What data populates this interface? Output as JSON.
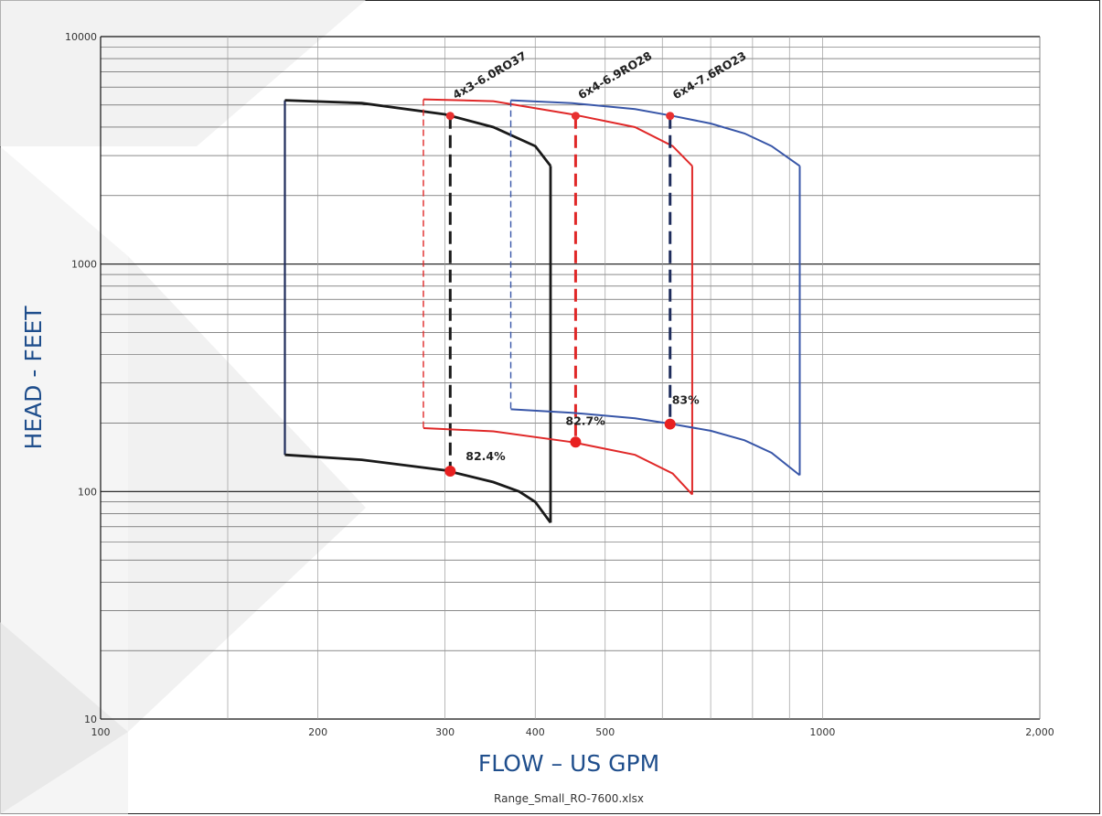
{
  "chart_data": {
    "type": "line",
    "xlabel": "FLOW – US GPM",
    "ylabel": "HEAD - FEET",
    "xscale": "log",
    "yscale": "log",
    "xlim": [
      100,
      2000
    ],
    "ylim": [
      10,
      10000
    ],
    "x_ticks": [
      {
        "value": 100,
        "label": "100"
      },
      {
        "value": 200,
        "label": "200"
      },
      {
        "value": 300,
        "label": "300"
      },
      {
        "value": 400,
        "label": "400"
      },
      {
        "value": 500,
        "label": "500"
      },
      {
        "value": 1000,
        "label": "1000"
      },
      {
        "value": 2000,
        "label": "2,000"
      }
    ],
    "y_ticks": [
      {
        "value": 10,
        "label": "10"
      },
      {
        "value": 100,
        "label": "100"
      },
      {
        "value": 1000,
        "label": "1000"
      },
      {
        "value": 10000,
        "label": "10000"
      }
    ],
    "x_grid": [
      150,
      200,
      300,
      400,
      500,
      600,
      700,
      800,
      900,
      1000
    ],
    "grid": true,
    "source_label": "Range_Small_RO-7600.xlsx",
    "pumps": [
      {
        "name": "4x3-6.0RO37",
        "color": "#1a1a1a",
        "left_color": "#1f2d5c",
        "upper_curve": [
          [
            180,
            5250
          ],
          [
            230,
            5100
          ],
          [
            300,
            4550
          ],
          [
            350,
            4000
          ],
          [
            400,
            3300
          ],
          [
            420,
            2700
          ]
        ],
        "lower_curve": [
          [
            180,
            145
          ],
          [
            230,
            138
          ],
          [
            300,
            124
          ],
          [
            350,
            110
          ],
          [
            380,
            100
          ],
          [
            400,
            90
          ],
          [
            420,
            73
          ]
        ],
        "bep": {
          "flow": 305,
          "head_upper": 4480,
          "head_lower": 123,
          "efficiency": "82.4%"
        }
      },
      {
        "name": "6x4-6.9RO28",
        "color": "#e02828",
        "upper_curve": [
          [
            280,
            5300
          ],
          [
            350,
            5200
          ],
          [
            450,
            4550
          ],
          [
            550,
            4000
          ],
          [
            620,
            3300
          ],
          [
            660,
            2700
          ]
        ],
        "lower_curve": [
          [
            280,
            190
          ],
          [
            350,
            184
          ],
          [
            450,
            165
          ],
          [
            550,
            145
          ],
          [
            620,
            120
          ],
          [
            660,
            97
          ]
        ],
        "bep": {
          "flow": 455,
          "head_upper": 4480,
          "head_lower": 165,
          "efficiency": "82.7%"
        }
      },
      {
        "name": "6x4-7.6RO23",
        "color": "#3856a8",
        "upper_curve": [
          [
            370,
            5250
          ],
          [
            450,
            5100
          ],
          [
            550,
            4800
          ],
          [
            620,
            4480
          ],
          [
            700,
            4150
          ],
          [
            780,
            3750
          ],
          [
            850,
            3300
          ],
          [
            930,
            2700
          ]
        ],
        "lower_curve": [
          [
            370,
            230
          ],
          [
            450,
            222
          ],
          [
            550,
            210
          ],
          [
            620,
            198
          ],
          [
            700,
            185
          ],
          [
            780,
            168
          ],
          [
            850,
            148
          ],
          [
            930,
            118
          ]
        ],
        "bep": {
          "flow": 615,
          "head_upper": 4480,
          "head_lower": 198,
          "efficiency": "83%"
        }
      }
    ]
  }
}
